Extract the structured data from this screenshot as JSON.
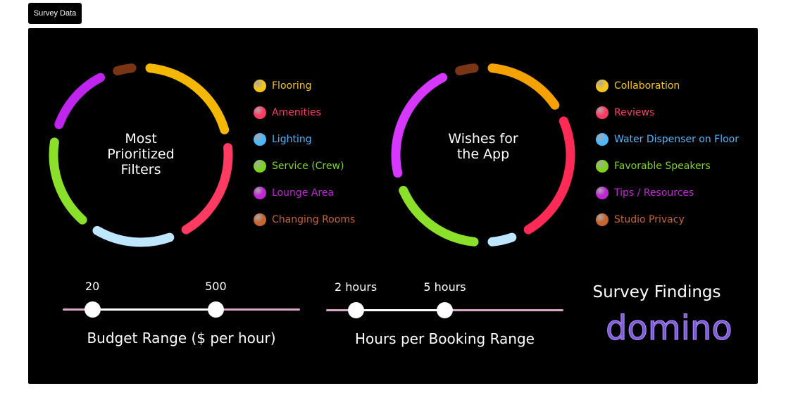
{
  "tab": {
    "label": "Survey Data"
  },
  "chart_data": [
    {
      "type": "pie",
      "variant": "donut",
      "center_label": [
        "Most",
        "Prioritized",
        "Filters"
      ],
      "categories": [
        "Flooring",
        "Amenities",
        "Lighting",
        "Service (Crew)",
        "Lounge Area",
        "Changing Rooms"
      ],
      "colors": [
        "#f5b800",
        "#ff3b62",
        "#bfe6ff",
        "#8be12a",
        "#c025ef",
        "#7a3614"
      ],
      "legend_colors": [
        "#f5c518",
        "#ff3b62",
        "#4fb7ff",
        "#7ed321",
        "#c026d3",
        "#c8642d"
      ],
      "values": [
        22,
        21,
        17,
        19,
        15,
        6
      ],
      "legend_position": "right"
    },
    {
      "type": "pie",
      "variant": "donut",
      "center_label": [
        "Wishes for",
        "the App"
      ],
      "categories": [
        "Collaboration",
        "Reviews",
        "Water Dispenser on Floor",
        "Favorable Speakers",
        "Tips / Resources",
        "Studio Privacy"
      ],
      "colors": [
        "#f5a200",
        "#ff2a55",
        "#bfe6ff",
        "#8be12a",
        "#d638ff",
        "#7a3614"
      ],
      "legend_colors": [
        "#f5c518",
        "#ff3b62",
        "#4fb7ff",
        "#7ed321",
        "#c026d3",
        "#c8642d"
      ],
      "values": [
        17,
        26,
        7,
        20,
        24,
        6
      ],
      "legend_position": "right"
    }
  ],
  "sliders": [
    {
      "title": "Budget Range ($ per hour)",
      "low_label": "20",
      "high_label": "500",
      "low_fraction": 0.125,
      "high_fraction": 0.645
    },
    {
      "title": "Hours per Booking Range",
      "low_label": "2 hours",
      "high_label": "5 hours",
      "low_fraction": 0.125,
      "high_fraction": 0.5
    }
  ],
  "findings": {
    "title": "Survey Findings",
    "logo_text": "domino"
  }
}
